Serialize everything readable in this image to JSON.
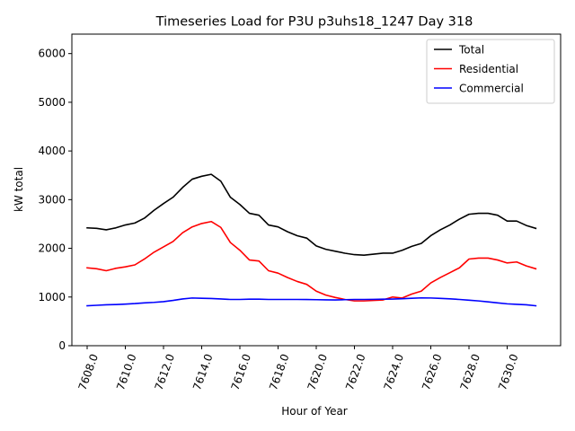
{
  "chart_data": {
    "type": "line",
    "title": "Timeseries Load for P3U p3uhs18_1247  Day 318",
    "xlabel": "Hour of Year",
    "ylabel": "kW total",
    "xlim": [
      7607.2,
      7632.8
    ],
    "ylim": [
      0,
      6400
    ],
    "xticks": [
      7608,
      7610,
      7612,
      7614,
      7616,
      7618,
      7620,
      7622,
      7624,
      7626,
      7628,
      7630
    ],
    "xtick_labels": [
      "7608.0",
      "7610.0",
      "7612.0",
      "7614.0",
      "7616.0",
      "7618.0",
      "7620.0",
      "7622.0",
      "7624.0",
      "7626.0",
      "7628.0",
      "7630.0"
    ],
    "yticks": [
      0,
      1000,
      2000,
      3000,
      4000,
      5000,
      6000
    ],
    "ytick_labels": [
      "0",
      "1000",
      "2000",
      "3000",
      "4000",
      "5000",
      "6000"
    ],
    "grid": false,
    "legend_position": "top-right",
    "x": [
      7608,
      7608.5,
      7609,
      7609.5,
      7610,
      7610.5,
      7611,
      7611.5,
      7612,
      7612.5,
      7613,
      7613.5,
      7614,
      7614.5,
      7615,
      7615.5,
      7616,
      7616.5,
      7617,
      7617.5,
      7618,
      7618.5,
      7619,
      7619.5,
      7620,
      7620.5,
      7621,
      7621.5,
      7622,
      7622.5,
      7623,
      7623.5,
      7624,
      7624.5,
      7625,
      7625.5,
      7626,
      7626.5,
      7627,
      7627.5,
      7628,
      7628.5,
      7629,
      7629.5,
      7630,
      7630.5,
      7631,
      7631.5
    ],
    "series": [
      {
        "name": "Total",
        "color": "#000000",
        "values": [
          2420,
          2410,
          2380,
          2420,
          2480,
          2520,
          2620,
          2780,
          2920,
          3050,
          3250,
          3420,
          3480,
          3520,
          3380,
          3050,
          2900,
          2720,
          2680,
          2480,
          2440,
          2340,
          2260,
          2210,
          2050,
          1980,
          1940,
          1900,
          1870,
          1860,
          1880,
          1900,
          1900,
          1960,
          2040,
          2100,
          2260,
          2380,
          2480,
          2600,
          2700,
          2720,
          2720,
          2680,
          2560,
          2560,
          2470,
          2410
        ]
      },
      {
        "name": "Residential",
        "color": "#ff0000",
        "values": [
          1600,
          1580,
          1540,
          1590,
          1620,
          1660,
          1780,
          1920,
          2030,
          2140,
          2320,
          2440,
          2510,
          2550,
          2430,
          2120,
          1960,
          1760,
          1740,
          1540,
          1490,
          1400,
          1320,
          1260,
          1120,
          1040,
          990,
          950,
          920,
          920,
          930,
          940,
          1000,
          980,
          1060,
          1120,
          1290,
          1400,
          1500,
          1600,
          1780,
          1800,
          1800,
          1760,
          1700,
          1720,
          1640,
          1580
        ]
      },
      {
        "name": "Commercial",
        "color": "#0000ff",
        "values": [
          820,
          830,
          840,
          845,
          855,
          865,
          880,
          890,
          905,
          930,
          960,
          980,
          975,
          970,
          960,
          950,
          950,
          955,
          955,
          950,
          950,
          950,
          950,
          948,
          945,
          942,
          940,
          945,
          950,
          950,
          952,
          955,
          958,
          965,
          975,
          982,
          980,
          972,
          962,
          950,
          935,
          920,
          900,
          880,
          860,
          850,
          840,
          820
        ]
      }
    ]
  }
}
